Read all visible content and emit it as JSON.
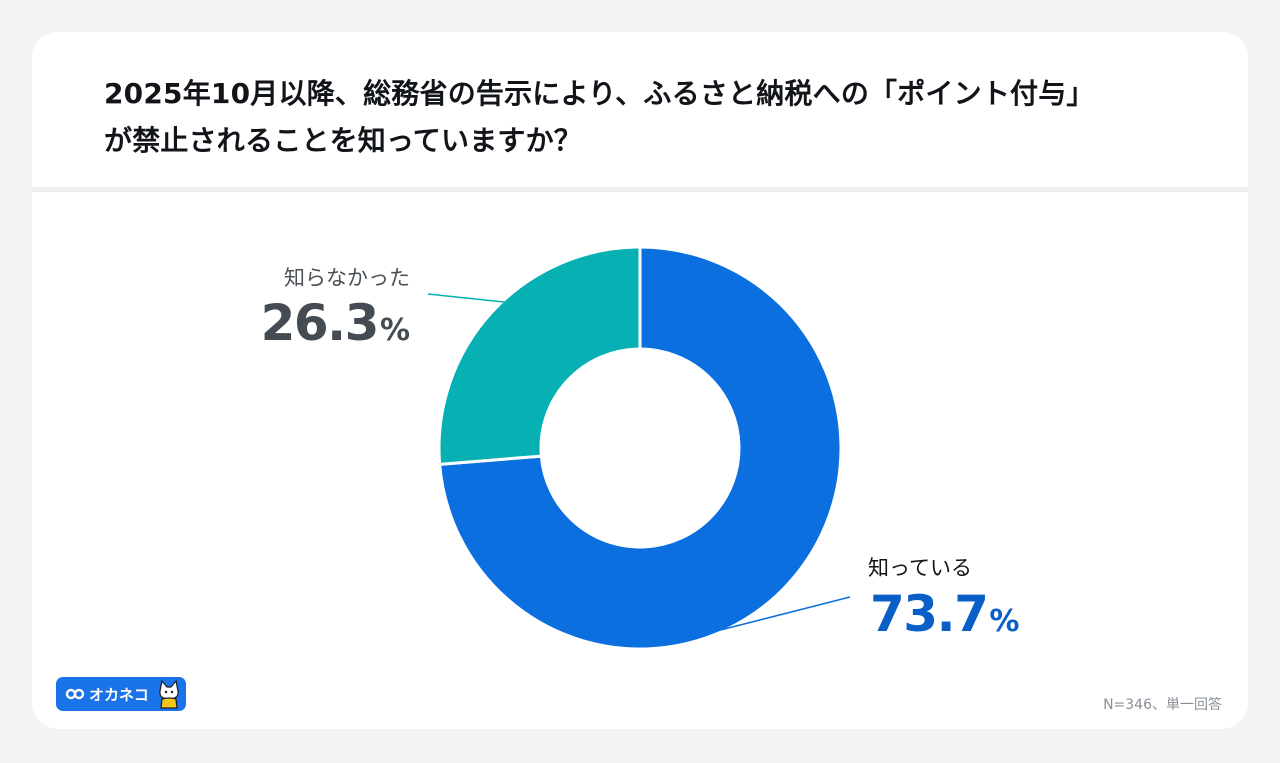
{
  "question": {
    "line1": "2025年10月以降、総務省の告示により、ふるさと納税への「ポイント付与」",
    "line2": "が禁止されることを知っていますか？"
  },
  "chart_data": {
    "type": "pie",
    "donut": true,
    "slices": [
      {
        "label": "知っている",
        "value": 73.7,
        "display": "73.7",
        "unit": "%",
        "color": "#0c6fe0"
      },
      {
        "label": "知らなかった",
        "value": 26.3,
        "display": "26.3",
        "unit": "%",
        "color": "#06b0b3"
      }
    ],
    "start_angle_deg": 0,
    "direction": "clockwise",
    "legend": "callout labels"
  },
  "footer": {
    "brand": "オカネコ",
    "note": "N=346、単一回答"
  },
  "colors": {
    "background": "#f1f3f5",
    "card": "#ffffff",
    "primary": "#0c6fe0",
    "secondary": "#06b0b3",
    "known_value_text": "#0a5fc6",
    "unknown_value_text": "#444b52"
  },
  "icons": [
    "okane-infinity-logo-icon",
    "cat-mascot-icon"
  ]
}
